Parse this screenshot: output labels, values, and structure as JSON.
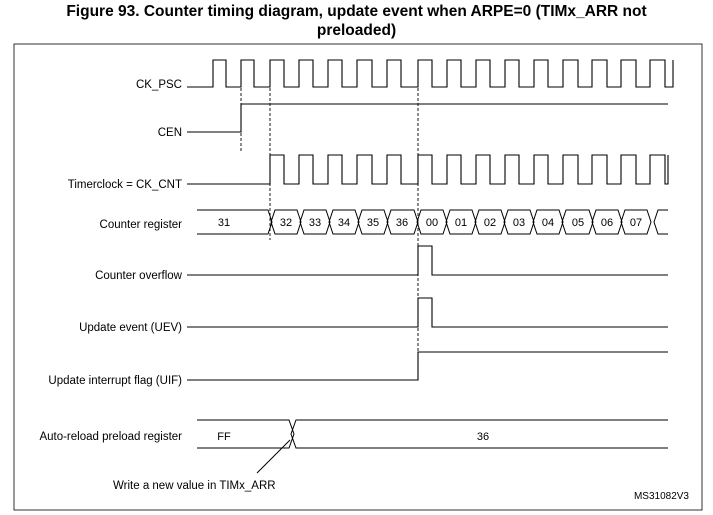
{
  "title": {
    "line1": "Figure 93. Counter timing diagram, update event when ARPE=0 (TIMx_ARR not",
    "line2": "preloaded)"
  },
  "signals": {
    "ck_psc": "CK_PSC",
    "cen": "CEN",
    "timerclock": "Timerclock = CK_CNT",
    "counter_register": "Counter register",
    "counter_overflow": "Counter overflow",
    "update_event": "Update event (UEV)",
    "uif": "Update interrupt flag (UIF)",
    "arr_preload": "Auto-reload preload register"
  },
  "counter_values": [
    "31",
    "32",
    "33",
    "34",
    "35",
    "36",
    "00",
    "01",
    "02",
    "03",
    "04",
    "05",
    "06",
    "07"
  ],
  "arr_values": [
    "FF",
    "36"
  ],
  "annotation": "Write a new value in TIMx_ARR",
  "figure_code": "MS31082V3"
}
